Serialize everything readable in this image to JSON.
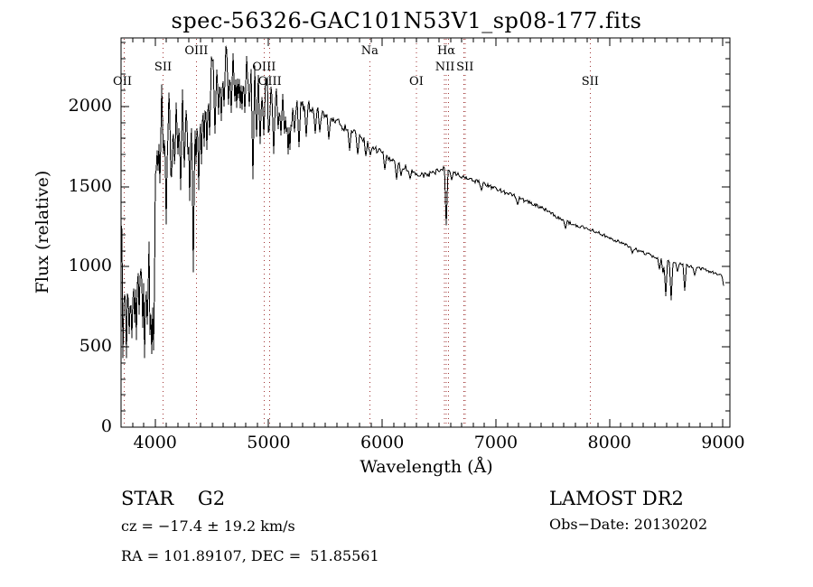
{
  "title": "spec-56326-GAC101N53V1_sp08-177.fits",
  "colors": {
    "background": "#ffffff",
    "trace": "#000000",
    "frame": "#000000",
    "reference_line": "#a03434",
    "text": "#000000"
  },
  "footer": {
    "class_label": "STAR    G2",
    "survey": "LAMOST DR2",
    "cz": "cz = −17.4 ± 19.2 km/s",
    "obs_date": "Obs−Date: 20130202",
    "coords": "RA = 101.89107, DEC =  51.85561"
  },
  "chart_data": {
    "type": "line",
    "title": "spec-56326-GAC101N53V1_sp08-177.fits",
    "xlabel": "Wavelength (Å)",
    "ylabel": "Flux (relative)",
    "xlim": [
      3700,
      9060
    ],
    "ylim": [
      0,
      2428
    ],
    "x_ticks": [
      4000,
      5000,
      6000,
      7000,
      8000,
      9000
    ],
    "y_ticks": [
      0,
      500,
      1000,
      1500,
      2000
    ],
    "x_minor_step": 100,
    "y_minor_step": 100,
    "grid": false,
    "legend": "none",
    "reference_lines": [
      3727,
      4070,
      4363,
      4959,
      5007,
      5890,
      6300,
      6548,
      6563,
      6583,
      6716,
      6731,
      7830
    ],
    "line_labels": [
      {
        "text": "OII",
        "wavelength": 3712,
        "row": 3,
        "bg": false
      },
      {
        "text": "SII",
        "wavelength": 4070,
        "row": 2,
        "bg": true
      },
      {
        "text": "OIII",
        "wavelength": 4363,
        "row": 1,
        "bg": true
      },
      {
        "text": "OIII",
        "wavelength": 4959,
        "row": 2,
        "bg": false
      },
      {
        "text": "OIII",
        "wavelength": 5010,
        "row": 3,
        "bg": false
      },
      {
        "text": "Na",
        "wavelength": 5890,
        "row": 1,
        "bg": true
      },
      {
        "text": "OI",
        "wavelength": 6300,
        "row": 3,
        "bg": true
      },
      {
        "text": "Hα",
        "wavelength": 6563,
        "row": 1,
        "bg": true
      },
      {
        "text": "NII",
        "wavelength": 6552,
        "row": 2,
        "bg": true
      },
      {
        "text": "SII",
        "wavelength": 6728,
        "row": 2,
        "bg": true
      },
      {
        "text": "SII",
        "wavelength": 7830,
        "row": 3,
        "bg": true
      }
    ],
    "continuum": [
      [
        3700,
        1280
      ],
      [
        3712,
        1020
      ],
      [
        3725,
        1140
      ],
      [
        3740,
        950
      ],
      [
        3758,
        1060
      ],
      [
        3778,
        920
      ],
      [
        3800,
        1010
      ],
      [
        3822,
        1150
      ],
      [
        3845,
        1240
      ],
      [
        3868,
        1160
      ],
      [
        3892,
        1210
      ],
      [
        3915,
        1090
      ],
      [
        3932,
        1010
      ],
      [
        3948,
        1120
      ],
      [
        3964,
        930
      ],
      [
        3984,
        1080
      ],
      [
        4000,
        1380
      ],
      [
        4018,
        1850
      ],
      [
        4036,
        2030
      ],
      [
        4080,
        2050
      ],
      [
        4125,
        2010
      ],
      [
        4170,
        2020
      ],
      [
        4215,
        2030
      ],
      [
        4260,
        2070
      ],
      [
        4305,
        2090
      ],
      [
        4350,
        2060
      ],
      [
        4395,
        2140
      ],
      [
        4440,
        2190
      ],
      [
        4485,
        2230
      ],
      [
        4530,
        2270
      ],
      [
        4575,
        2305
      ],
      [
        4620,
        2325
      ],
      [
        4665,
        2330
      ],
      [
        4710,
        2305
      ],
      [
        4755,
        2285
      ],
      [
        4800,
        2270
      ],
      [
        4845,
        2240
      ],
      [
        4890,
        2185
      ],
      [
        4935,
        2145
      ],
      [
        4980,
        2115
      ],
      [
        5030,
        2085
      ],
      [
        5080,
        2070
      ],
      [
        5130,
        2050
      ],
      [
        5180,
        2040
      ],
      [
        5240,
        2025
      ],
      [
        5300,
        2010
      ],
      [
        5360,
        2000
      ],
      [
        5420,
        1985
      ],
      [
        5480,
        1950
      ],
      [
        5540,
        1925
      ],
      [
        5600,
        1900
      ],
      [
        5660,
        1870
      ],
      [
        5720,
        1850
      ],
      [
        5780,
        1810
      ],
      [
        5840,
        1780
      ],
      [
        5900,
        1750
      ],
      [
        5960,
        1725
      ],
      [
        6020,
        1700
      ],
      [
        6080,
        1670
      ],
      [
        6140,
        1645
      ],
      [
        6200,
        1620
      ],
      [
        6260,
        1595
      ],
      [
        6320,
        1580
      ],
      [
        6380,
        1568
      ],
      [
        6440,
        1580
      ],
      [
        6500,
        1605
      ],
      [
        6540,
        1612
      ],
      [
        6600,
        1595
      ],
      [
        6660,
        1578
      ],
      [
        6720,
        1558
      ],
      [
        6780,
        1545
      ],
      [
        6840,
        1530
      ],
      [
        6920,
        1508
      ],
      [
        7000,
        1488
      ],
      [
        7080,
        1465
      ],
      [
        7160,
        1442
      ],
      [
        7240,
        1415
      ],
      [
        7320,
        1394
      ],
      [
        7400,
        1370
      ],
      [
        7480,
        1340
      ],
      [
        7560,
        1300
      ],
      [
        7620,
        1282
      ],
      [
        7700,
        1258
      ],
      [
        7780,
        1242
      ],
      [
        7860,
        1225
      ],
      [
        7940,
        1200
      ],
      [
        8020,
        1175
      ],
      [
        8100,
        1150
      ],
      [
        8180,
        1126
      ],
      [
        8260,
        1100
      ],
      [
        8340,
        1078
      ],
      [
        8420,
        1055
      ],
      [
        8500,
        1035
      ],
      [
        8580,
        1022
      ],
      [
        8640,
        1015
      ],
      [
        8700,
        1002
      ],
      [
        8760,
        993
      ],
      [
        8820,
        988
      ],
      [
        8880,
        970
      ],
      [
        8930,
        962
      ],
      [
        8960,
        942
      ],
      [
        8985,
        950
      ],
      [
        9000,
        902
      ],
      [
        9010,
        835
      ]
    ],
    "absorption_lines": [
      [
        3727,
        760
      ],
      [
        3750,
        620
      ],
      [
        3771,
        580
      ],
      [
        3798,
        555
      ],
      [
        3820,
        650
      ],
      [
        3835,
        545
      ],
      [
        3856,
        700
      ],
      [
        3889,
        620
      ],
      [
        3912,
        760
      ],
      [
        3933,
        640
      ],
      [
        3968,
        455
      ],
      [
        3989,
        478
      ],
      [
        4026,
        1600
      ],
      [
        4045,
        1520
      ],
      [
        4077,
        1700
      ],
      [
        4101,
        1265
      ],
      [
        4144,
        1560
      ],
      [
        4172,
        1640
      ],
      [
        4202,
        1700
      ],
      [
        4227,
        1480
      ],
      [
        4260,
        1620
      ],
      [
        4290,
        1700
      ],
      [
        4305,
        1410
      ],
      [
        4325,
        1650
      ],
      [
        4340,
        965
      ],
      [
        4362,
        1640
      ],
      [
        4383,
        1480
      ],
      [
        4405,
        1640
      ],
      [
        4435,
        1750
      ],
      [
        4455,
        1730
      ],
      [
        4482,
        1820
      ],
      [
        4531,
        1830
      ],
      [
        4555,
        1950
      ],
      [
        4580,
        1910
      ],
      [
        4608,
        2000
      ],
      [
        4648,
        2010
      ],
      [
        4668,
        1960
      ],
      [
        4700,
        2030
      ],
      [
        4730,
        2050
      ],
      [
        4762,
        1980
      ],
      [
        4786,
        1960
      ],
      [
        4830,
        2000
      ],
      [
        4861,
        1545
      ],
      [
        4892,
        1810
      ],
      [
        4922,
        1765
      ],
      [
        4958,
        1820
      ],
      [
        5005,
        1850
      ],
      [
        5041,
        1705
      ],
      [
        5080,
        1860
      ],
      [
        5110,
        1820
      ],
      [
        5140,
        1830
      ],
      [
        5168,
        1700
      ],
      [
        5184,
        1730
      ],
      [
        5228,
        1840
      ],
      [
        5270,
        1745
      ],
      [
        5328,
        1810
      ],
      [
        5406,
        1830
      ],
      [
        5446,
        1840
      ],
      [
        5530,
        1795
      ],
      [
        5712,
        1725
      ],
      [
        5782,
        1700
      ],
      [
        5854,
        1690
      ],
      [
        5893,
        1695
      ],
      [
        6024,
        1605
      ],
      [
        6122,
        1545
      ],
      [
        6163,
        1568
      ],
      [
        6246,
        1548
      ],
      [
        6563,
        1258
      ],
      [
        6612,
        1540
      ],
      [
        6870,
        1475
      ],
      [
        7190,
        1385
      ],
      [
        7610,
        1238
      ],
      [
        8205,
        1085
      ],
      [
        8440,
        985
      ],
      [
        8470,
        960
      ],
      [
        8498,
        818
      ],
      [
        8542,
        792
      ],
      [
        8598,
        970
      ],
      [
        8662,
        852
      ],
      [
        8750,
        945
      ]
    ],
    "noise_regions": [
      [
        3700,
        3900,
        255
      ],
      [
        3900,
        4005,
        205
      ],
      [
        4005,
        4400,
        100
      ],
      [
        4400,
        5000,
        82
      ],
      [
        5000,
        5400,
        46
      ],
      [
        5400,
        5900,
        30
      ],
      [
        5900,
        6500,
        20
      ],
      [
        6500,
        7300,
        13
      ],
      [
        7300,
        8400,
        10
      ],
      [
        8400,
        9060,
        9
      ]
    ],
    "noise_seed": 20130202,
    "spikes": {
      "down_prob": 0.13,
      "down_base": 1.2,
      "down_scale": 3.0,
      "down_max_wavelength": 5350,
      "up_prob": 0.1,
      "up_scale": 0.9,
      "up_max_wavelength": 4050
    }
  }
}
